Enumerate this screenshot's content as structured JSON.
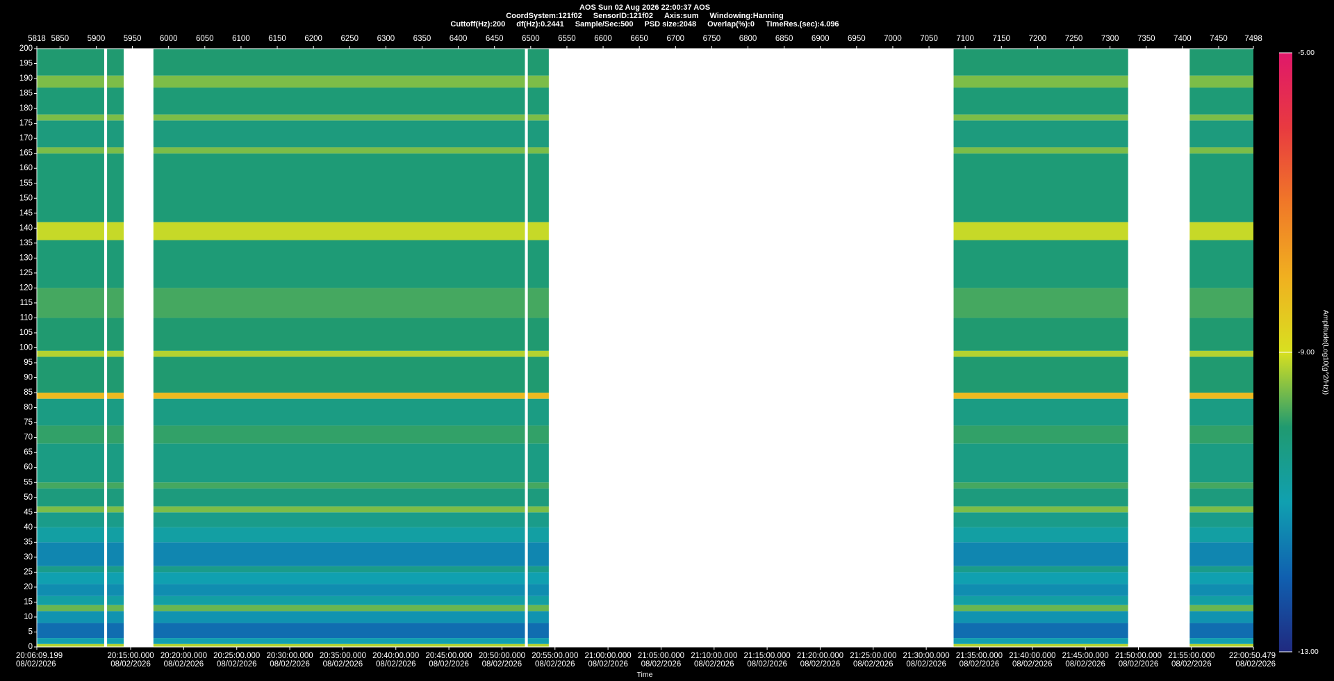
{
  "chart_data": {
    "type": "spectrogram",
    "header": [
      [
        "AOS  Sun 02 Aug 2026 22:00:37  AOS"
      ],
      [
        "CoordSystem:121f02",
        "SensorID:121f02",
        "Axis:sum",
        "Windowing:Hanning"
      ],
      [
        "Cuttoff(Hz):200",
        "df(Hz):0.2441",
        "Sample/Sec:500",
        "PSD size:2048",
        "Overlap(%):0",
        "TimeRes.(sec):4.096"
      ]
    ],
    "xlim": [
      5818,
      7498
    ],
    "xticks": [
      5818,
      5850,
      5900,
      5950,
      6000,
      6050,
      6100,
      6150,
      6200,
      6250,
      6300,
      6350,
      6400,
      6450,
      6500,
      6550,
      6600,
      6650,
      6700,
      6750,
      6800,
      6850,
      6900,
      6950,
      7000,
      7050,
      7100,
      7150,
      7200,
      7250,
      7300,
      7350,
      7400,
      7450,
      7498
    ],
    "ylim": [
      0,
      200
    ],
    "yticks": [
      0,
      5,
      10,
      15,
      20,
      25,
      30,
      35,
      40,
      45,
      50,
      55,
      60,
      65,
      70,
      75,
      80,
      85,
      90,
      95,
      100,
      105,
      110,
      115,
      120,
      125,
      130,
      135,
      140,
      145,
      150,
      155,
      160,
      165,
      170,
      175,
      180,
      185,
      190,
      195,
      200
    ],
    "time_lim": [
      "20:06:09.199",
      "22:00:50.479"
    ],
    "time_ticks": [
      {
        "time": "20:06:09.199",
        "date": "08/02/2026"
      },
      {
        "time": "20:15:00.000",
        "date": "08/02/2026"
      },
      {
        "time": "20:20:00.000",
        "date": "08/02/2026"
      },
      {
        "time": "20:25:00.000",
        "date": "08/02/2026"
      },
      {
        "time": "20:30:00.000",
        "date": "08/02/2026"
      },
      {
        "time": "20:35:00.000",
        "date": "08/02/2026"
      },
      {
        "time": "20:40:00.000",
        "date": "08/02/2026"
      },
      {
        "time": "20:45:00.000",
        "date": "08/02/2026"
      },
      {
        "time": "20:50:00.000",
        "date": "08/02/2026"
      },
      {
        "time": "20:55:00.000",
        "date": "08/02/2026"
      },
      {
        "time": "21:00:00.000",
        "date": "08/02/2026"
      },
      {
        "time": "21:05:00.000",
        "date": "08/02/2026"
      },
      {
        "time": "21:10:00.000",
        "date": "08/02/2026"
      },
      {
        "time": "21:15:00.000",
        "date": "08/02/2026"
      },
      {
        "time": "21:20:00.000",
        "date": "08/02/2026"
      },
      {
        "time": "21:25:00.000",
        "date": "08/02/2026"
      },
      {
        "time": "21:30:00.000",
        "date": "08/02/2026"
      },
      {
        "time": "21:35:00.000",
        "date": "08/02/2026"
      },
      {
        "time": "21:40:00.000",
        "date": "08/02/2026"
      },
      {
        "time": "21:45:00.000",
        "date": "08/02/2026"
      },
      {
        "time": "21:50:00.000",
        "date": "08/02/2026"
      },
      {
        "time": "21:55:00.000",
        "date": "08/02/2026"
      },
      {
        "time": "22:00:50.479",
        "date": "08/02/2026"
      }
    ],
    "xlabel": "Time",
    "segments": [
      [
        5818,
        5911
      ],
      [
        5915,
        5938
      ],
      [
        5979,
        6492
      ],
      [
        6496,
        6525
      ],
      [
        7084,
        7325
      ],
      [
        7410,
        7498
      ]
    ],
    "band_edges": [
      0,
      1,
      3,
      8,
      12,
      14,
      17,
      21,
      25,
      27,
      35,
      40,
      45,
      47,
      53,
      55,
      68,
      74,
      83,
      85,
      97,
      99,
      110,
      120,
      136,
      142,
      165,
      167,
      176,
      178,
      187,
      191,
      200
    ],
    "amplitude": [
      -9.2,
      -11.0,
      -11.8,
      -11.2,
      -9.6,
      -10.8,
      -11.3,
      -11.0,
      -10.4,
      -11.4,
      -10.8,
      -10.4,
      -9.5,
      -10.2,
      -9.8,
      -10.3,
      -9.9,
      -10.3,
      -8.2,
      -10.0,
      -9.2,
      -10.0,
      -9.8,
      -10.1,
      -9.1,
      -10.1,
      -9.5,
      -10.2,
      -9.5,
      -10.1,
      -9.5,
      -10.0
    ],
    "clim": [
      -13,
      -5
    ],
    "cticks": [
      {
        "value": -5,
        "label": "-5.00"
      },
      {
        "value": -9,
        "label": "-9.00"
      },
      {
        "value": -13,
        "label": "-13.00"
      }
    ],
    "clabel": "Amplitude(Log10(g^2/Hz))",
    "colormap": [
      "#202a80",
      "#1060b0",
      "#10a0b0",
      "#209a70",
      "#d8e020",
      "#f0b020",
      "#f07828",
      "#e83a40",
      "#e0186a"
    ]
  }
}
